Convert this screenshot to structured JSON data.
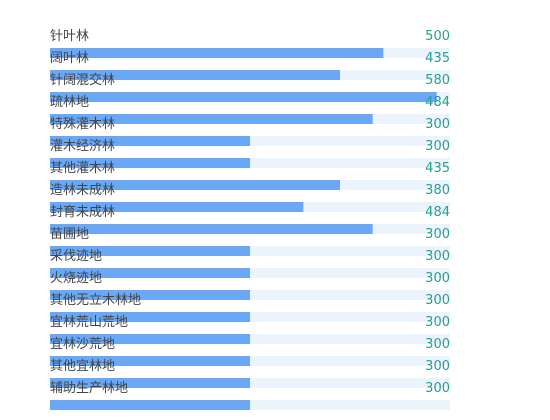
{
  "chart_data": {
    "type": "bar",
    "orientation": "horizontal",
    "max_value": 600,
    "categories": [
      "针叶林",
      "阔叶林",
      "针阔混交林",
      "疏林地",
      "特殊灌木林",
      "灌木经济林",
      "其他灌木林",
      "造林未成林",
      "封育未成林",
      "苗圃地",
      "采伐迹地",
      "火烧迹地",
      "其他无立木林地",
      "宜林荒山荒地",
      "宜林沙荒地",
      "其他宜林地",
      "辅助生产林地"
    ],
    "values": [
      500,
      435,
      580,
      484,
      300,
      300,
      435,
      380,
      484,
      300,
      300,
      300,
      300,
      300,
      300,
      300,
      300
    ],
    "bar_values": [
      500,
      435,
      580,
      484,
      300,
      300,
      435,
      380,
      484,
      300,
      300,
      300,
      300,
      300,
      300,
      300,
      300
    ],
    "colors": {
      "bar": "#6aa7f5",
      "track": "#ebf3fd",
      "label": "#444444",
      "value": "#2a9d8f"
    }
  }
}
